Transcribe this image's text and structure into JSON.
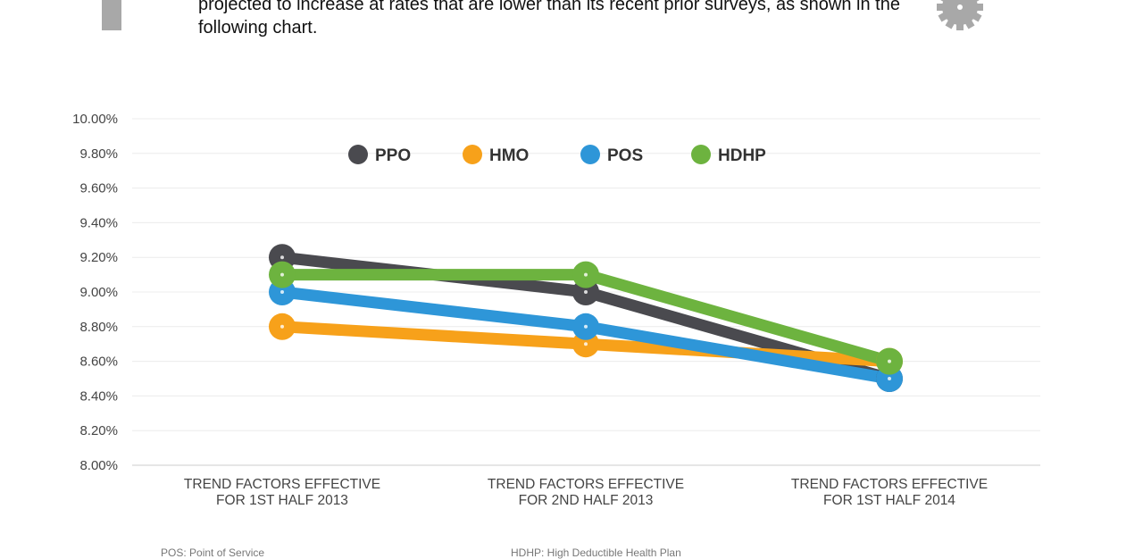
{
  "intro_text": "projected to increase at rates that are lower than its recent prior surveys, as shown in the following chart.",
  "icons": {
    "left": "plus-icon",
    "right": "gear-icon"
  },
  "footnotes": [
    "POS: Point of Service",
    "HDHP: High Deductible Health Plan"
  ],
  "chart_data": {
    "type": "line",
    "title": "",
    "categories": [
      [
        "TREND FACTORS EFFECTIVE",
        "FOR 1ST HALF 2013"
      ],
      [
        "TREND FACTORS EFFECTIVE",
        "FOR 2ND HALF 2013"
      ],
      [
        "TREND FACTORS EFFECTIVE",
        "FOR 1ST HALF 2014"
      ]
    ],
    "ylim": [
      8.0,
      10.0
    ],
    "yticks": [
      "8.00%",
      "8.20%",
      "8.40%",
      "8.60%",
      "8.80%",
      "9.00%",
      "9.20%",
      "9.40%",
      "9.60%",
      "9.80%",
      "10.00%"
    ],
    "grid": true,
    "legend_position": "top",
    "series": [
      {
        "name": "PPO",
        "color": "#4a4a4f",
        "values": [
          9.2,
          9.0,
          8.5
        ]
      },
      {
        "name": "HMO",
        "color": "#f7a11a",
        "values": [
          8.8,
          8.7,
          8.6
        ]
      },
      {
        "name": "POS",
        "color": "#2e96d8",
        "values": [
          9.0,
          8.8,
          8.5
        ]
      },
      {
        "name": "HDHP",
        "color": "#6db33f",
        "values": [
          9.1,
          9.1,
          8.6
        ]
      }
    ]
  }
}
